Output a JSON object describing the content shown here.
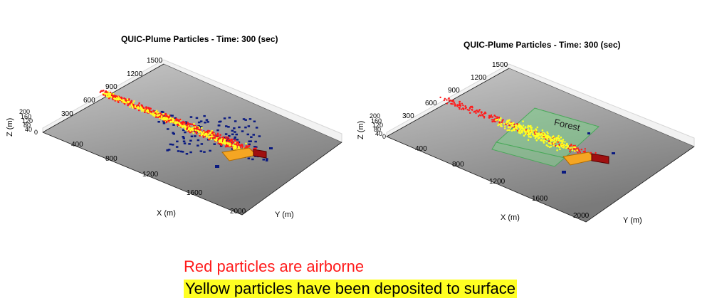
{
  "panels": [
    {
      "title": "QUIC-Plume Particles - Time: 300 (sec)",
      "x_label": "X (m)",
      "y_label": "Y (m)",
      "z_label": "Z (m)",
      "x_ticks": [
        "400",
        "800",
        "1200",
        "1600",
        "2000"
      ],
      "y_ticks": [
        "300",
        "600",
        "900",
        "1200",
        "1500"
      ],
      "z_ticks": [
        "200",
        "160",
        "120",
        "80",
        "40",
        "0"
      ],
      "annotation": ""
    },
    {
      "title": "QUIC-Plume Particles - Time: 300 (sec)",
      "x_label": "X (m)",
      "y_label": "Y (m)",
      "z_label": "Z (m)",
      "x_ticks": [
        "400",
        "800",
        "1200",
        "1600",
        "2000"
      ],
      "y_ticks": [
        "300",
        "600",
        "900",
        "1200",
        "1500"
      ],
      "z_ticks": [
        "200",
        "160",
        "120",
        "80",
        "40",
        "0"
      ],
      "annotation": "Forest"
    }
  ],
  "legend": {
    "airborne": "Red particles are airborne",
    "deposited": "Yellow particles have been deposited to surface"
  },
  "colors": {
    "airborne": "#ff1a1a",
    "deposited": "#ffff22",
    "building": "#0a1a80",
    "source_area": "#f5a623",
    "source_block": "#a01010",
    "forest": "#7ed38a"
  }
}
